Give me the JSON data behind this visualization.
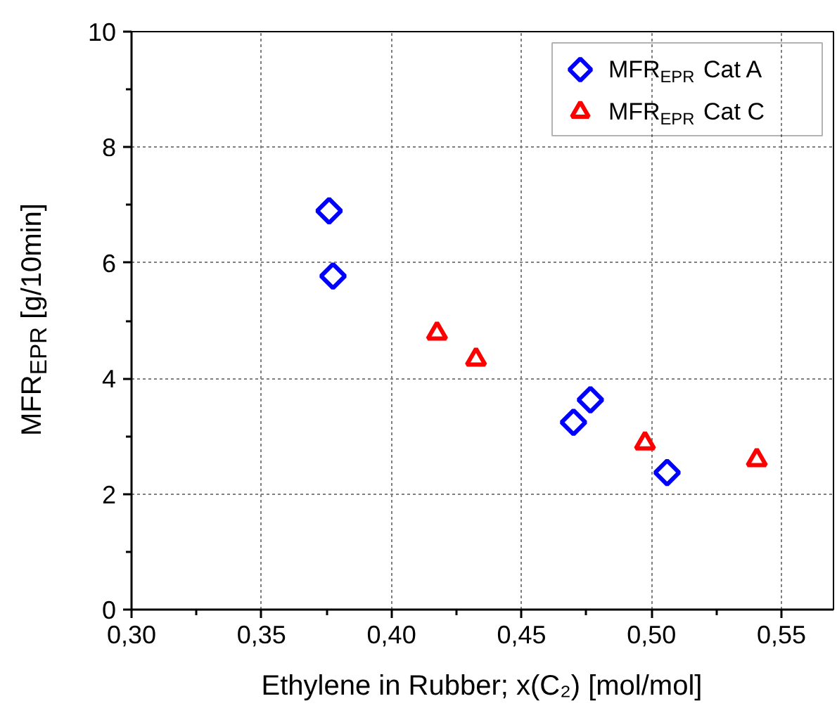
{
  "chart_data": {
    "type": "scatter",
    "xlabel": "Ethylene in Rubber; x(C₂) [mol/mol]",
    "ylabel": "MFR$_{EPR}$ [g/10min]",
    "series": [
      {
        "name": "MFR$_{EPR}$ Cat A",
        "color": "#0000ff",
        "marker": "diamond",
        "x": [
          0.376,
          0.3775,
          0.47,
          0.4765,
          0.506
        ],
        "values": [
          6.9,
          5.77,
          3.24,
          3.63,
          2.37
        ]
      },
      {
        "name": "MFR$_{EPR}$ Cat C",
        "color": "#ff0000",
        "marker": "triangle",
        "x": [
          0.4175,
          0.4325,
          0.4975,
          0.5405
        ],
        "values": [
          4.78,
          4.33,
          2.88,
          2.59
        ]
      }
    ],
    "xlim": [
      0.3,
      0.57
    ],
    "ylim": [
      0,
      10
    ],
    "xticks": [
      {
        "value": 0.3,
        "label": "0,30"
      },
      {
        "value": 0.325,
        "label": null
      },
      {
        "value": 0.35,
        "label": "0,35"
      },
      {
        "value": 0.375,
        "label": null
      },
      {
        "value": 0.4,
        "label": "0,40"
      },
      {
        "value": 0.425,
        "label": null
      },
      {
        "value": 0.45,
        "label": "0,45"
      },
      {
        "value": 0.475,
        "label": null
      },
      {
        "value": 0.5,
        "label": "0,50"
      },
      {
        "value": 0.525,
        "label": null
      },
      {
        "value": 0.55,
        "label": "0,55"
      }
    ],
    "yticks": [
      0,
      {
        "value": 1,
        "label": null
      },
      2,
      {
        "value": 3,
        "label": null
      },
      4,
      {
        "value": 5,
        "label": null
      },
      6,
      {
        "value": 7,
        "label": null
      },
      8,
      {
        "value": 9,
        "label": null
      },
      10
    ],
    "grid": true,
    "legend": "top right"
  }
}
